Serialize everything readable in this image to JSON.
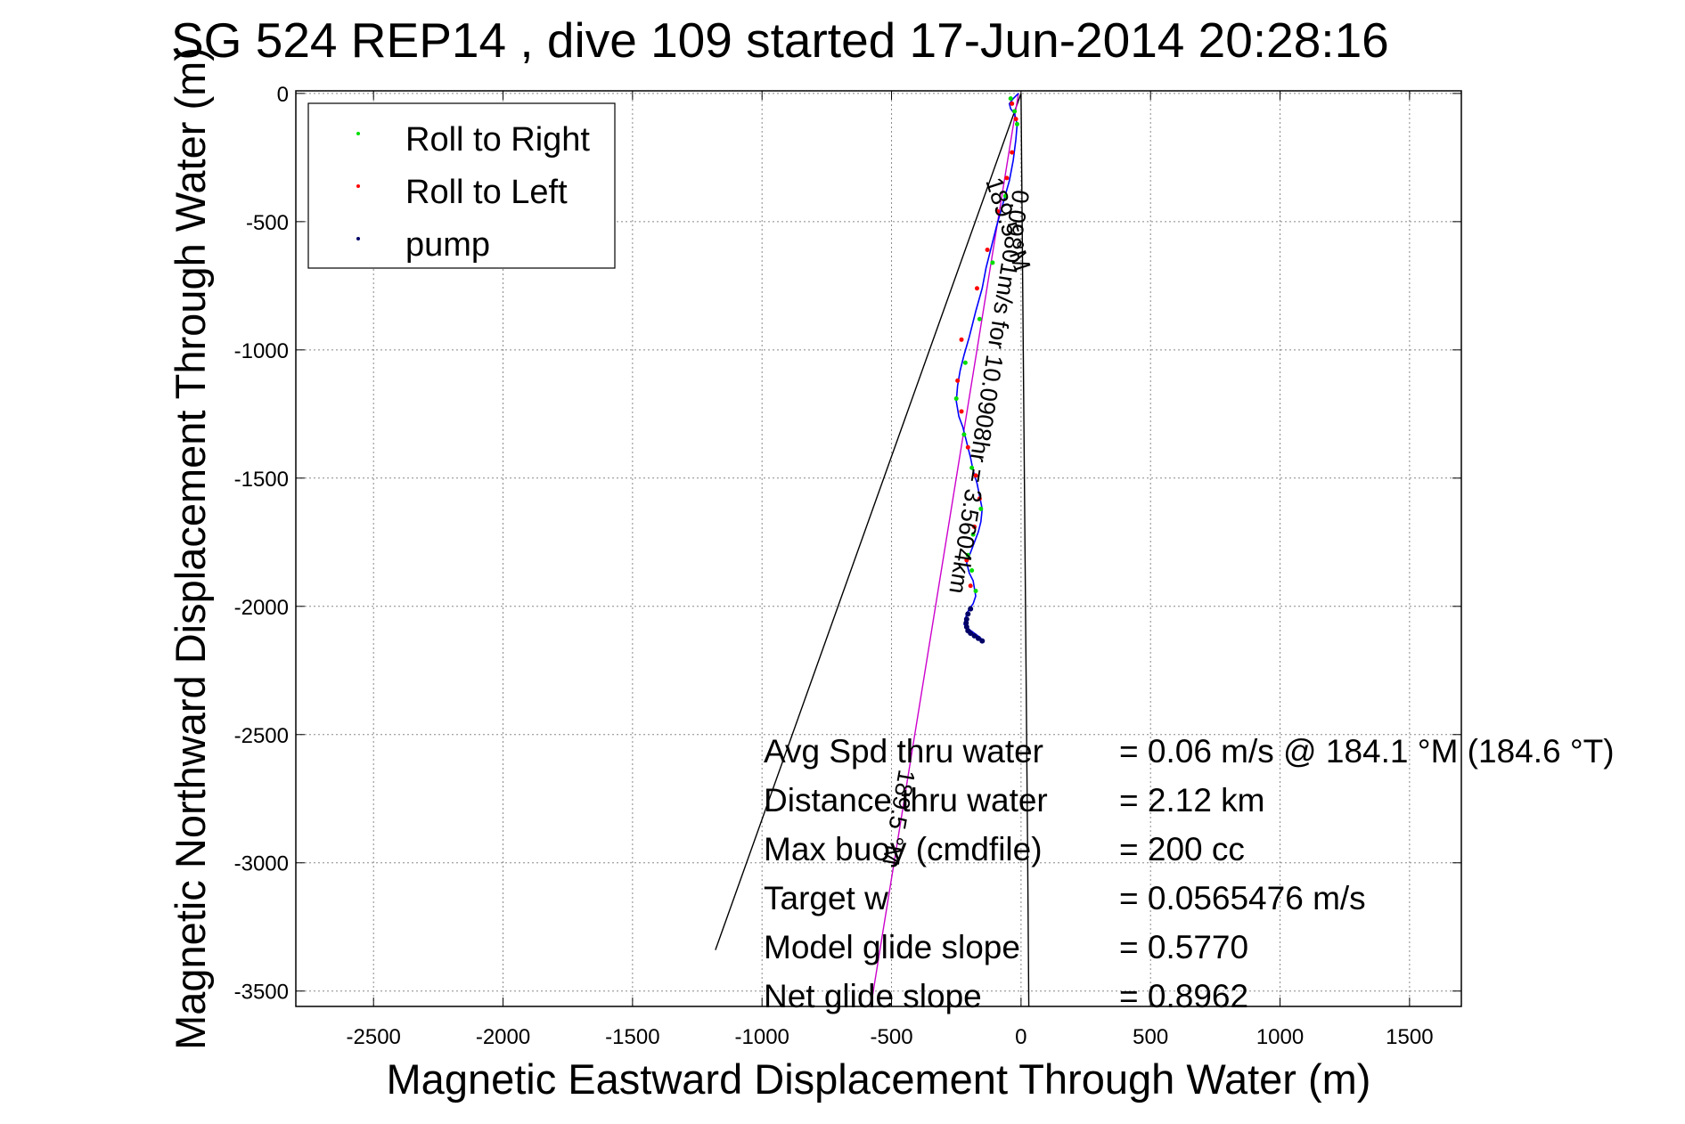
{
  "chart_data": {
    "type": "scatter",
    "title": "SG 524   REP14  , dive 109 started 17-Jun-2014 20:28:16",
    "xlabel": "Magnetic Eastward Displacement Through Water (m)",
    "ylabel": "Magnetic Northward Displacement Through Water (m)",
    "xlim": [
      -2800,
      1700
    ],
    "ylim": [
      -3560,
      10
    ],
    "xticks": [
      -2500,
      -2000,
      -1500,
      -1000,
      -500,
      0,
      500,
      1000,
      1500
    ],
    "yticks": [
      0,
      -500,
      -1000,
      -1500,
      -2000,
      -2500,
      -3000,
      -3500
    ],
    "grid": true,
    "legend_position": "top-left",
    "legend": [
      {
        "label": "Roll to Right",
        "color": "#00dd00"
      },
      {
        "label": "Roll to Left",
        "color": "#ff0000"
      },
      {
        "label": "pump",
        "color": "#000066"
      }
    ],
    "track": {
      "name": "track",
      "color": "#0000ff",
      "x": [
        -10,
        -30,
        -45,
        -40,
        -25,
        -15,
        -20,
        -30,
        -45,
        -70,
        -95,
        -115,
        -135,
        -150,
        -175,
        -200,
        -220,
        -235,
        -245,
        -250,
        -240,
        -225,
        -215,
        -205,
        -195,
        -185,
        -170,
        -160,
        -150,
        -155,
        -165,
        -180,
        -195,
        -210,
        -200,
        -185,
        -180,
        -175,
        -185,
        -200,
        -210,
        -215,
        -220,
        -200,
        -180,
        -160,
        -150
      ],
      "y": [
        0,
        -20,
        -40,
        -60,
        -80,
        -120,
        -180,
        -260,
        -340,
        -430,
        -520,
        -600,
        -680,
        -760,
        -850,
        -950,
        -1020,
        -1080,
        -1140,
        -1200,
        -1260,
        -1300,
        -1340,
        -1380,
        -1420,
        -1470,
        -1520,
        -1570,
        -1620,
        -1670,
        -1710,
        -1750,
        -1790,
        -1830,
        -1870,
        -1900,
        -1930,
        -1960,
        -1990,
        -2010,
        -2030,
        -2050,
        -2070,
        -2090,
        -2105,
        -2120,
        -2130
      ]
    },
    "roll_right": {
      "x": [
        -40,
        -25,
        -15,
        -60,
        -110,
        -160,
        -215,
        -250,
        -220,
        -190,
        -155,
        -185,
        -205,
        -190,
        -175
      ],
      "y": [
        -20,
        -70,
        -120,
        -400,
        -660,
        -880,
        -1050,
        -1190,
        -1330,
        -1460,
        -1620,
        -1720,
        -1800,
        -1860,
        -1940
      ]
    },
    "roll_left": {
      "x": [
        -35,
        -20,
        -35,
        -55,
        -90,
        -130,
        -170,
        -230,
        -245,
        -230,
        -205,
        -175,
        -160,
        -180,
        -210,
        -195
      ],
      "y": [
        -40,
        -100,
        -230,
        -330,
        -460,
        -610,
        -760,
        -960,
        -1120,
        -1240,
        -1380,
        -1490,
        -1580,
        -1690,
        -1820,
        -1920
      ]
    },
    "pump": {
      "x": [
        -195,
        -205,
        -210,
        -212,
        -210,
        -205,
        -195,
        -180,
        -165,
        -150
      ],
      "y": [
        -2010,
        -2030,
        -2050,
        -2065,
        -2080,
        -2095,
        -2105,
        -2115,
        -2125,
        -2135
      ]
    },
    "lines": [
      {
        "name": "current",
        "color": "#000000",
        "x": [
          0,
          25,
          30
        ],
        "y": [
          0,
          -2900,
          -3560
        ]
      },
      {
        "name": "heading-line",
        "color": "#000000",
        "x": [
          0,
          -1180
        ],
        "y": [
          0,
          -3340
        ]
      },
      {
        "name": "dive-line",
        "color": "#cc00cc",
        "x": [
          -10,
          -580
        ],
        "y": [
          0,
          -3560
        ]
      }
    ],
    "annotations": {
      "heading_label": "189.5 °M",
      "speed_label": "0.09801m/s for 10.0908hr = 3.5604km",
      "dive_label": "189.5 °M"
    },
    "stats": [
      {
        "label": "Avg Spd thru water",
        "value": "=  0.06 m/s @ 184.1 °M (184.6 °T)"
      },
      {
        "label": "Distance thru water",
        "value": "=  2.12 km"
      },
      {
        "label": "Max buoy (cmdfile)",
        "value": "= 200 cc"
      },
      {
        "label": "Target w",
        "value": "= 0.0565476 m/s"
      },
      {
        "label": "Model glide slope",
        "value": "= 0.5770"
      },
      {
        "label": "Net glide slope",
        "value": "= 0.8962"
      }
    ]
  }
}
